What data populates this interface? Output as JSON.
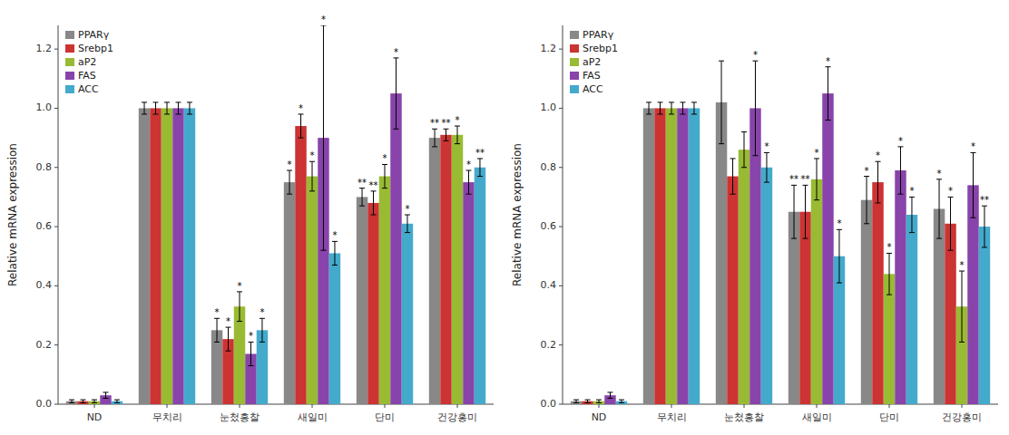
{
  "chart_data": [
    {
      "type": "bar",
      "categories": [
        "ND",
        "무치리",
        "눈첬흥찰",
        "새일미",
        "단미",
        "건강홍미"
      ],
      "series": [
        {
          "name": "PPARγ",
          "color": "#888888",
          "values": [
            0.01,
            1.0,
            0.25,
            0.75,
            0.7,
            0.9
          ],
          "errors": [
            0.005,
            0.02,
            0.04,
            0.04,
            0.03,
            0.03
          ],
          "annotations": [
            null,
            null,
            "*",
            "*",
            "**",
            "**"
          ]
        },
        {
          "name": "Srebp1",
          "color": "#cc3333",
          "values": [
            0.01,
            1.0,
            0.22,
            0.94,
            0.68,
            0.91
          ],
          "errors": [
            0.005,
            0.02,
            0.04,
            0.04,
            0.04,
            0.02
          ],
          "annotations": [
            null,
            null,
            "*",
            "*",
            "**",
            "**"
          ]
        },
        {
          "name": "aP2",
          "color": "#99bb33",
          "values": [
            0.01,
            1.0,
            0.33,
            0.77,
            0.77,
            0.91
          ],
          "errors": [
            0.005,
            0.02,
            0.05,
            0.05,
            0.04,
            0.03
          ],
          "annotations": [
            null,
            null,
            "*",
            "*",
            "*",
            "*"
          ]
        },
        {
          "name": "FAS",
          "color": "#8844aa",
          "values": [
            0.03,
            1.0,
            0.17,
            0.9,
            1.05,
            0.75
          ],
          "errors": [
            0.01,
            0.02,
            0.04,
            0.38,
            0.12,
            0.04
          ],
          "annotations": [
            null,
            null,
            "*",
            "*",
            "*",
            "*"
          ]
        },
        {
          "name": "ACC",
          "color": "#44aacc",
          "values": [
            0.01,
            1.0,
            0.25,
            0.51,
            0.61,
            0.8
          ],
          "errors": [
            0.005,
            0.02,
            0.04,
            0.04,
            0.03,
            0.03
          ],
          "annotations": [
            null,
            null,
            "*",
            "*",
            "*",
            "**"
          ]
        }
      ],
      "ylabel": "Relative mRNA expression",
      "ylim": [
        0,
        1.28
      ],
      "yticks": [
        {
          "value": 0,
          "label": "0.0"
        },
        0.2,
        0.4,
        0.6,
        0.8,
        {
          "value": 1.0,
          "label": "1.0"
        },
        1.2
      ],
      "grid": false,
      "legend": "upper left"
    },
    {
      "type": "bar",
      "categories": [
        "ND",
        "무치리",
        "눈첬흥찰",
        "새일미",
        "단미",
        "건강홍미"
      ],
      "series": [
        {
          "name": "PPARγ",
          "color": "#888888",
          "values": [
            0.01,
            1.0,
            1.02,
            0.65,
            0.69,
            0.66
          ],
          "errors": [
            0.005,
            0.02,
            0.14,
            0.09,
            0.08,
            0.1
          ],
          "annotations": [
            null,
            null,
            null,
            "**",
            "*",
            "*"
          ]
        },
        {
          "name": "Srebp1",
          "color": "#cc3333",
          "values": [
            0.01,
            1.0,
            0.77,
            0.65,
            0.75,
            0.61
          ],
          "errors": [
            0.005,
            0.02,
            0.06,
            0.09,
            0.07,
            0.09
          ],
          "annotations": [
            null,
            null,
            null,
            "**",
            "*",
            "*"
          ]
        },
        {
          "name": "aP2",
          "color": "#99bb33",
          "values": [
            0.01,
            1.0,
            0.86,
            0.76,
            0.44,
            0.33
          ],
          "errors": [
            0.005,
            0.02,
            0.06,
            0.07,
            0.07,
            0.12
          ],
          "annotations": [
            null,
            null,
            null,
            "*",
            "*",
            "*"
          ]
        },
        {
          "name": "FAS",
          "color": "#8844aa",
          "values": [
            0.03,
            1.0,
            1.0,
            1.05,
            0.79,
            0.74
          ],
          "errors": [
            0.01,
            0.02,
            0.16,
            0.09,
            0.08,
            0.11
          ],
          "annotations": [
            null,
            null,
            "*",
            "*",
            "*",
            "*"
          ]
        },
        {
          "name": "ACC",
          "color": "#44aacc",
          "values": [
            0.01,
            1.0,
            0.8,
            0.5,
            0.64,
            0.6
          ],
          "errors": [
            0.005,
            0.02,
            0.05,
            0.09,
            0.06,
            0.07
          ],
          "annotations": [
            null,
            null,
            "*",
            "*",
            "*",
            "**"
          ]
        }
      ],
      "ylabel": "Relative mRNA expression",
      "ylim": [
        0,
        1.28
      ],
      "yticks": [
        {
          "value": 0,
          "label": "0.0"
        },
        0.2,
        0.4,
        0.6,
        0.8,
        {
          "value": 1.0,
          "label": "1.0"
        },
        1.2
      ],
      "grid": false,
      "legend": "upper left"
    }
  ]
}
